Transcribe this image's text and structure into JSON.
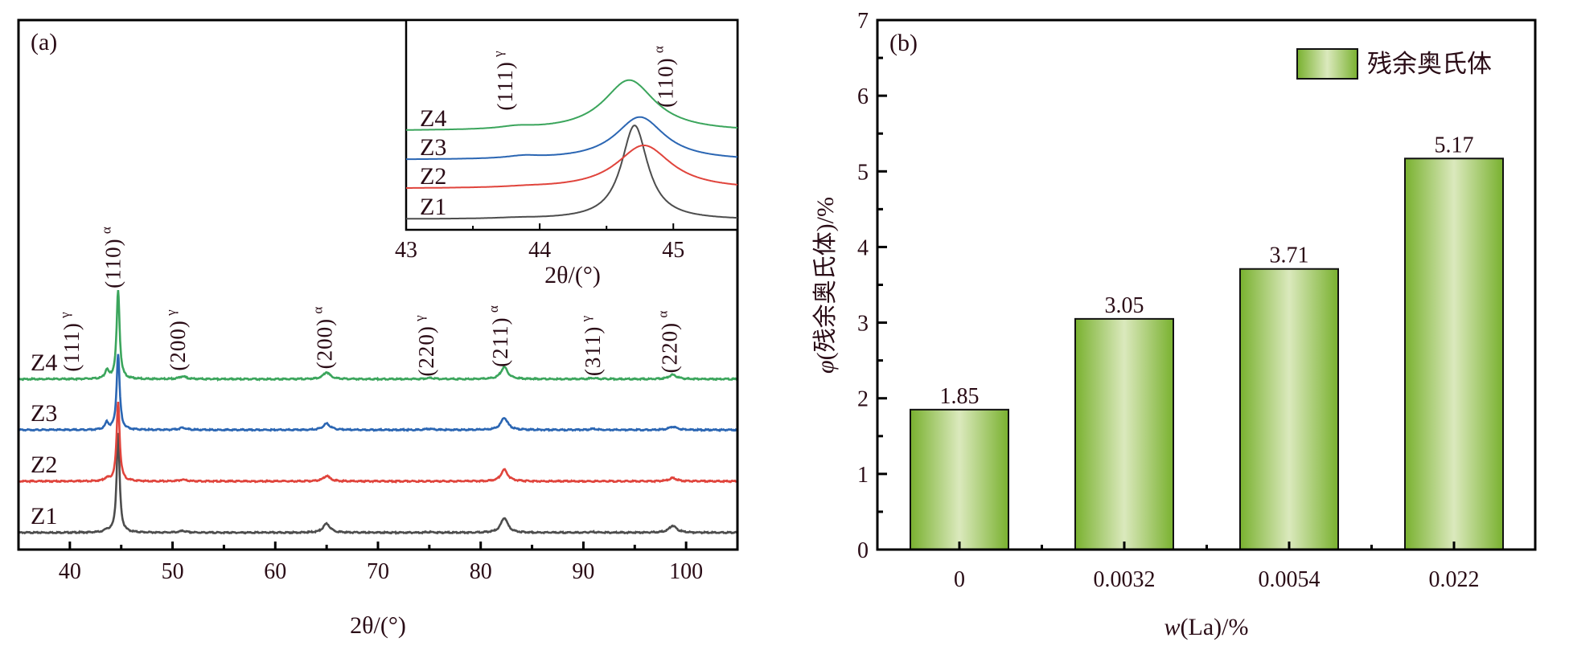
{
  "chart_data": [
    {
      "type": "line",
      "panel_label": "(a)",
      "xlabel": "2θ/(°)",
      "ylabel": "",
      "xlim": [
        35,
        105
      ],
      "ylim": [
        0,
        100
      ],
      "xticks": [
        40,
        50,
        60,
        70,
        80,
        90,
        100
      ],
      "series": [
        {
          "name": "Z1",
          "color": "#4d4d4d",
          "baseline": 3.2,
          "peaks": [
            [
              43.6,
              0.4,
              0.5
            ],
            [
              44.7,
              18.7,
              0.35
            ],
            [
              51.0,
              0.3,
              0.8
            ],
            [
              65.0,
              1.7,
              0.8
            ],
            [
              75.0,
              0.1,
              0.8
            ],
            [
              82.3,
              2.8,
              0.8
            ],
            [
              91.0,
              0.1,
              0.8
            ],
            [
              98.7,
              1.3,
              0.9
            ]
          ]
        },
        {
          "name": "Z2",
          "color": "#e0443c",
          "baseline": 12.9,
          "peaks": [
            [
              43.6,
              0.5,
              0.5
            ],
            [
              44.7,
              15.0,
              0.35
            ],
            [
              51.0,
              0.3,
              0.8
            ],
            [
              65.0,
              1.0,
              0.8
            ],
            [
              82.3,
              2.2,
              0.8
            ],
            [
              98.7,
              0.6,
              0.9
            ]
          ]
        },
        {
          "name": "Z3",
          "color": "#2b66b3",
          "baseline": 22.6,
          "peaks": [
            [
              43.6,
              1.3,
              0.4
            ],
            [
              44.7,
              14.4,
              0.35
            ],
            [
              51.0,
              0.4,
              0.8
            ],
            [
              65.0,
              1.2,
              0.8
            ],
            [
              75.0,
              0.2,
              0.8
            ],
            [
              82.3,
              2.3,
              0.8
            ],
            [
              91.0,
              0.2,
              0.8
            ],
            [
              98.7,
              0.6,
              0.9
            ]
          ]
        },
        {
          "name": "Z4",
          "color": "#3ba55c",
          "baseline": 32.2,
          "peaks": [
            [
              43.6,
              1.6,
              0.4
            ],
            [
              44.7,
              16.7,
              0.35
            ],
            [
              51.0,
              0.5,
              0.8
            ],
            [
              65.0,
              1.3,
              0.8
            ],
            [
              75.0,
              0.2,
              0.8
            ],
            [
              82.3,
              2.3,
              0.8
            ],
            [
              91.0,
              0.2,
              0.8
            ],
            [
              98.7,
              0.8,
              0.9
            ]
          ]
        }
      ],
      "peak_labels": [
        {
          "hkl": "(111)",
          "phase": "γ",
          "x": 40.5
        },
        {
          "hkl": "(110)",
          "phase": "α",
          "x": 44.5
        },
        {
          "hkl": "(200)",
          "phase": "γ",
          "x": 50.8
        },
        {
          "hkl": "(200)",
          "phase": "α",
          "x": 65.1
        },
        {
          "hkl": "(220)",
          "phase": "γ",
          "x": 75.0
        },
        {
          "hkl": "(211)",
          "phase": "α",
          "x": 82.2
        },
        {
          "hkl": "(311)",
          "phase": "γ",
          "x": 91.2
        },
        {
          "hkl": "(220)",
          "phase": "α",
          "x": 98.7
        }
      ],
      "inset": {
        "xlabel": "2θ/(°)",
        "xlim": [
          43,
          45.48
        ],
        "ylim": [
          0,
          100
        ],
        "xticks": [
          43,
          44,
          45
        ],
        "series": [
          {
            "name": "Z1",
            "color": "#4d4d4d",
            "baseline": 5.0,
            "peaks": [
              [
                43.83,
                0.4,
                0.4
              ],
              [
                44.71,
                45.0,
                0.24
              ]
            ]
          },
          {
            "name": "Z2",
            "color": "#e0443c",
            "baseline": 19.5,
            "peaks": [
              [
                43.9,
                0.4,
                0.4
              ],
              [
                44.78,
                21.0,
                0.5
              ]
            ]
          },
          {
            "name": "Z3",
            "color": "#2b66b3",
            "baseline": 33.3,
            "peaks": [
              [
                43.88,
                1.2,
                0.3
              ],
              [
                44.75,
                20.7,
                0.45
              ]
            ]
          },
          {
            "name": "Z4",
            "color": "#3ba55c",
            "baseline": 47.1,
            "peaks": [
              [
                43.83,
                1.2,
                0.3
              ],
              [
                44.67,
                24.5,
                0.47
              ]
            ]
          }
        ],
        "peak_labels": [
          {
            "hkl": "(111)",
            "phase": "γ",
            "x": 43.8
          },
          {
            "hkl": "(110)",
            "phase": "α",
            "x": 45.0
          }
        ]
      }
    },
    {
      "type": "bar",
      "panel_label": "(b)",
      "categories": [
        "0",
        "0.0032",
        "0.0054",
        "0.022"
      ],
      "values": [
        1.85,
        3.05,
        3.71,
        5.17
      ],
      "value_labels": [
        "1.85",
        "3.05",
        "3.71",
        "5.17"
      ],
      "xlabel_italic": "w",
      "xlabel_rest": "(La)/%",
      "ylabel_italic": "φ",
      "ylabel_rest": "(残余奥氏体)/%",
      "ylim": [
        0,
        7
      ],
      "yticks": [
        0,
        1,
        2,
        3,
        4,
        5,
        6,
        7
      ],
      "legend": {
        "label": "残余奥氏体",
        "position": "top-right"
      },
      "bar_color_edge": "#79b12f",
      "bar_color_center": "#dbe9bd"
    }
  ]
}
